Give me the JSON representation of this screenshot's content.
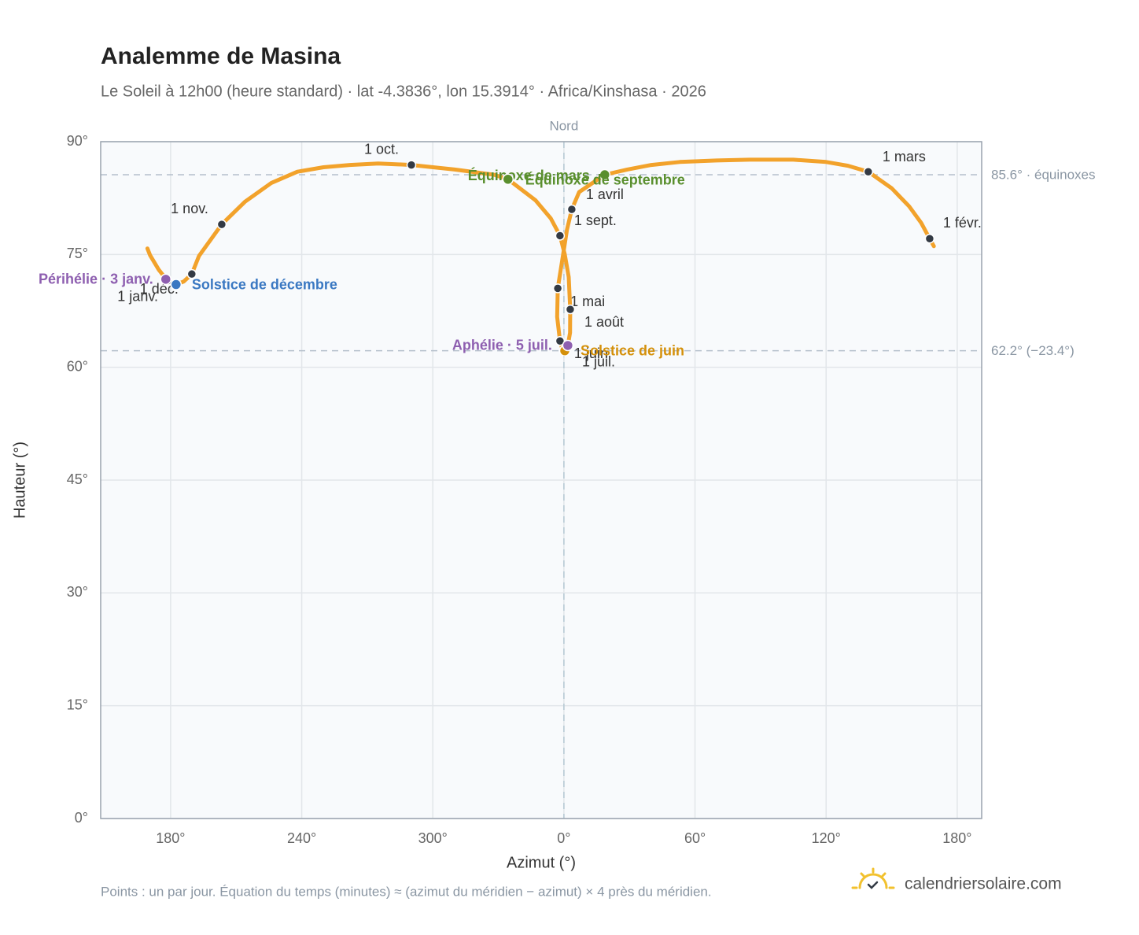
{
  "chart_data": {
    "type": "scatter",
    "title": "Analemme de Masina",
    "subtitle": "Le Soleil à 12h00 (heure standard) · lat -4.3836°, lon 15.3914° · Africa/Kinshasa · 2026",
    "x_label": "Azimut (°)",
    "y_label": "Hauteur (°)",
    "note": "Points : un par jour. Équation du temps (minutes) ≈ (azimut du méridien − azimut) × 4 près du méridien.",
    "brand": "calendriersolaire.com",
    "xlim": [
      148,
      551.2
    ],
    "ylim": [
      0,
      90
    ],
    "xticks": [
      {
        "value": 180,
        "label": "180°"
      },
      {
        "value": 240,
        "label": "240°"
      },
      {
        "value": 300,
        "label": "300°"
      },
      {
        "value": 360,
        "label": "0°"
      },
      {
        "value": 420,
        "label": "60°"
      },
      {
        "value": 480,
        "label": "120°"
      },
      {
        "value": 540,
        "label": "180°"
      }
    ],
    "yticks": [
      {
        "value": 0,
        "label": "0°"
      },
      {
        "value": 15,
        "label": "15°"
      },
      {
        "value": 30,
        "label": "30°"
      },
      {
        "value": 45,
        "label": "45°"
      },
      {
        "value": 60,
        "label": "60°"
      },
      {
        "value": 75,
        "label": "75°"
      },
      {
        "value": 90,
        "label": "90°"
      }
    ],
    "grid": true,
    "series": [
      {
        "name": "Soleil",
        "color": "#f2a22b",
        "x": [
          178.6,
          174.5,
          170.6,
          169.4,
          null,
          529.3,
          527.4,
          523.5,
          518,
          510,
          499.3,
          490,
          480,
          465,
          445,
          430,
          413,
          400,
          389,
          378.7,
          367,
          363.6,
          361.4,
          359.2,
          357.2,
          356.9,
          358.2,
          359.1,
          360.4,
          360.4,
          361.8,
          362.8,
          362.9,
          362.2,
          360.4,
          358.2,
          354,
          347,
          334.4,
          328,
          310,
          290.2,
          275,
          262,
          250,
          238,
          226,
          214,
          203.4,
          193,
          189.7,
          186,
          182.5,
          178.9
        ],
        "values": [
          71.5,
          73.0,
          74.9,
          75.8,
          null,
          76.1,
          77.1,
          79.2,
          81.4,
          83.8,
          86.0,
          86.8,
          87.3,
          87.6,
          87.6,
          87.5,
          87.3,
          86.9,
          86.3,
          85.6,
          83.3,
          81.0,
          78.3,
          74.2,
          70.5,
          66.7,
          63.5,
          62.6,
          62.2,
          62.3,
          62.9,
          64.6,
          67.7,
          72.0,
          75.0,
          77.5,
          79.8,
          82.2,
          85.0,
          85.6,
          86.3,
          86.9,
          87.1,
          86.9,
          86.6,
          86.0,
          84.5,
          82.0,
          79.0,
          74.8,
          72.4,
          71.4,
          71.0,
          71.4
        ]
      }
    ],
    "month_markers": {
      "color": "#333a44",
      "labels": [
        "1 janv.",
        "1 févr.",
        "1 mars",
        "1 avril",
        "1 mai",
        "1 juin",
        "1 juil.",
        "1 août",
        "1 sept.",
        "1 oct.",
        "1 nov.",
        "1 déc."
      ],
      "x": [
        178.6,
        527.4,
        499.3,
        363.6,
        357.2,
        358.2,
        360.4,
        362.9,
        358.2,
        290.2,
        203.4,
        189.7
      ],
      "values": [
        71.5,
        77.1,
        86.0,
        81.0,
        70.5,
        63.5,
        62.3,
        67.7,
        77.5,
        86.9,
        79.0,
        72.4
      ]
    },
    "events": [
      {
        "label": "Équinoxe de mars",
        "x": 378.7,
        "value": 85.6,
        "color": "#5a8f2e"
      },
      {
        "label": "Équinoxe de septembre",
        "x": 334.4,
        "value": 85.0,
        "color": "#5a8f2e"
      },
      {
        "label": "Solstice de décembre",
        "x": 182.5,
        "value": 71.0,
        "color": "#3a78c2"
      },
      {
        "label": "Solstice de juin",
        "x": 360.4,
        "value": 62.2,
        "color": "#d4900a"
      },
      {
        "label": "Périhélie · 3 janv.",
        "x": 177.8,
        "value": 71.7,
        "color": "#8e5fb0"
      },
      {
        "label": "Aphélie · 5 juil.",
        "x": 361.8,
        "value": 62.9,
        "color": "#8e5fb0"
      }
    ],
    "hlines": [
      {
        "value": 85.6,
        "label": "85.6° · équinoxes"
      },
      {
        "value": 62.2,
        "label": "62.2° (−23.4°)"
      }
    ],
    "vline": {
      "value": 360,
      "label": "Nord"
    }
  }
}
